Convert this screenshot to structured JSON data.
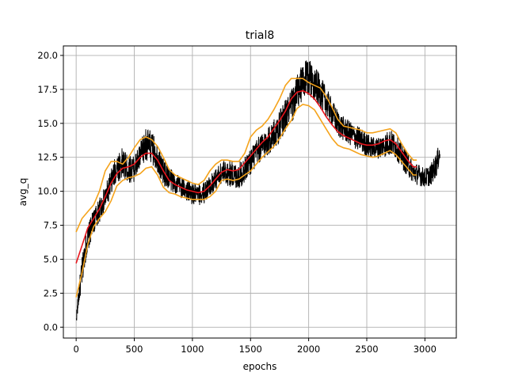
{
  "chart_data": {
    "type": "line",
    "title": "trial8",
    "xlabel": "epochs",
    "ylabel": "avg_q",
    "xlim": [
      -110,
      3270
    ],
    "ylim": [
      -0.8,
      20.7
    ],
    "xticks": [
      0,
      500,
      1000,
      1500,
      2000,
      2500,
      3000
    ],
    "xtick_labels": [
      "0",
      "500",
      "1000",
      "1500",
      "2000",
      "2500",
      "3000"
    ],
    "yticks": [
      0.0,
      2.5,
      5.0,
      7.5,
      10.0,
      12.5,
      15.0,
      17.5,
      20.0
    ],
    "ytick_labels": [
      "0.0",
      "2.5",
      "5.0",
      "7.5",
      "10.0",
      "12.5",
      "15.0",
      "17.5",
      "20.0"
    ],
    "grid": true,
    "colors": {
      "raw": "#000000",
      "mean": "#e8141b",
      "band": "#f5a31b"
    },
    "series": [
      {
        "role": "raw",
        "x": [
          0,
          25,
          50,
          75,
          100,
          150,
          200,
          250,
          300,
          350,
          400,
          450,
          500,
          550,
          600,
          650,
          700,
          750,
          800,
          850,
          900,
          950,
          1000,
          1050,
          1100,
          1150,
          1200,
          1250,
          1300,
          1350,
          1400,
          1450,
          1500,
          1550,
          1600,
          1650,
          1700,
          1750,
          1800,
          1850,
          1900,
          1950,
          2000,
          2050,
          2100,
          2150,
          2200,
          2250,
          2300,
          2350,
          2400,
          2450,
          2500,
          2550,
          2600,
          2650,
          2700,
          2750,
          2800,
          2850,
          2900,
          2950,
          3000,
          3050,
          3100,
          3130
        ],
        "y": [
          0.5,
          2.5,
          4.0,
          5.5,
          6.5,
          7.8,
          8.6,
          9.5,
          10.6,
          11.8,
          12.0,
          11.6,
          11.7,
          12.5,
          13.5,
          13.2,
          12.5,
          11.4,
          11.0,
          10.6,
          10.3,
          10.1,
          9.8,
          9.7,
          9.9,
          10.4,
          10.9,
          11.3,
          11.4,
          11.2,
          11.1,
          11.6,
          12.2,
          12.8,
          13.3,
          13.7,
          14.1,
          14.8,
          15.6,
          16.2,
          17.2,
          18.0,
          18.4,
          18.0,
          17.3,
          16.6,
          15.8,
          15.0,
          14.6,
          14.3,
          14.0,
          13.8,
          13.4,
          13.2,
          13.2,
          13.4,
          13.6,
          13.3,
          12.6,
          12.0,
          11.4,
          11.2,
          11.0,
          11.2,
          12.0,
          12.9
        ],
        "noise": [
          0.3,
          0.8,
          1.1,
          1.0,
          1.0,
          0.9,
          0.9,
          0.9,
          1.0,
          1.1,
          1.2,
          1.0,
          1.0,
          1.1,
          1.2,
          1.2,
          1.1,
          1.0,
          0.9,
          0.8,
          0.8,
          0.8,
          0.8,
          0.8,
          0.8,
          0.8,
          0.8,
          0.9,
          1.0,
          1.0,
          1.0,
          1.0,
          1.0,
          1.0,
          1.1,
          1.1,
          1.2,
          1.2,
          1.2,
          1.3,
          1.4,
          1.4,
          1.4,
          1.3,
          1.2,
          1.1,
          1.0,
          1.0,
          0.9,
          0.9,
          0.9,
          0.9,
          0.9,
          0.8,
          0.8,
          0.9,
          1.0,
          0.9,
          0.9,
          0.9,
          0.8,
          0.8,
          0.7,
          0.8,
          0.9,
          0.8
        ]
      },
      {
        "role": "mean",
        "x": [
          0,
          50,
          100,
          150,
          200,
          250,
          300,
          350,
          400,
          450,
          500,
          550,
          600,
          650,
          700,
          750,
          800,
          850,
          900,
          950,
          1000,
          1050,
          1100,
          1150,
          1200,
          1250,
          1300,
          1350,
          1400,
          1450,
          1500,
          1550,
          1600,
          1650,
          1700,
          1750,
          1800,
          1850,
          1900,
          1950,
          2000,
          2050,
          2100,
          2150,
          2200,
          2250,
          2300,
          2350,
          2400,
          2450,
          2500,
          2550,
          2600,
          2650,
          2700,
          2750,
          2800,
          2850,
          2900,
          2930
        ],
        "y": [
          4.7,
          6.0,
          7.3,
          8.0,
          8.7,
          9.6,
          10.6,
          11.3,
          11.7,
          11.8,
          12.0,
          12.5,
          12.8,
          12.8,
          12.3,
          11.5,
          10.8,
          10.5,
          10.3,
          10.1,
          10.0,
          9.9,
          10.0,
          10.4,
          10.9,
          11.4,
          11.6,
          11.5,
          11.6,
          12.1,
          12.6,
          13.1,
          13.6,
          14.0,
          14.6,
          15.2,
          15.9,
          16.8,
          17.3,
          17.4,
          17.2,
          16.8,
          16.2,
          15.5,
          14.9,
          14.4,
          14.1,
          13.9,
          13.7,
          13.5,
          13.4,
          13.4,
          13.5,
          13.7,
          13.8,
          13.5,
          12.9,
          12.3,
          11.8,
          11.8
        ]
      },
      {
        "role": "upper",
        "x": [
          0,
          50,
          100,
          150,
          200,
          250,
          300,
          350,
          400,
          450,
          500,
          550,
          600,
          650,
          700,
          750,
          800,
          850,
          900,
          950,
          1000,
          1050,
          1100,
          1150,
          1200,
          1250,
          1300,
          1350,
          1400,
          1450,
          1500,
          1550,
          1600,
          1650,
          1700,
          1750,
          1800,
          1850,
          1900,
          1950,
          2000,
          2050,
          2100,
          2150,
          2200,
          2250,
          2300,
          2350,
          2400,
          2450,
          2500,
          2550,
          2600,
          2650,
          2700,
          2750,
          2800,
          2850,
          2900,
          2930
        ],
        "y": [
          7.0,
          8.0,
          8.5,
          9.0,
          10.0,
          11.5,
          12.2,
          12.2,
          12.0,
          12.5,
          13.2,
          13.8,
          14.0,
          13.8,
          13.3,
          12.5,
          11.6,
          11.2,
          11.0,
          10.8,
          10.6,
          10.5,
          10.8,
          11.5,
          12.0,
          12.3,
          12.3,
          12.2,
          12.2,
          12.8,
          14.0,
          14.5,
          14.8,
          15.3,
          16.0,
          16.8,
          17.8,
          18.3,
          18.3,
          18.3,
          18.0,
          17.8,
          17.6,
          17.0,
          16.2,
          15.3,
          14.8,
          14.7,
          14.6,
          14.5,
          14.3,
          14.3,
          14.4,
          14.5,
          14.6,
          14.3,
          13.5,
          12.8,
          12.3,
          12.3
        ]
      },
      {
        "role": "lower",
        "x": [
          0,
          50,
          100,
          150,
          200,
          250,
          300,
          350,
          400,
          450,
          500,
          550,
          600,
          650,
          700,
          750,
          800,
          850,
          900,
          950,
          1000,
          1050,
          1100,
          1150,
          1200,
          1250,
          1300,
          1350,
          1400,
          1450,
          1500,
          1550,
          1600,
          1650,
          1700,
          1750,
          1800,
          1850,
          1900,
          1950,
          2000,
          2050,
          2100,
          2150,
          2200,
          2250,
          2300,
          2350,
          2400,
          2450,
          2500,
          2550,
          2600,
          2650,
          2700,
          2750,
          2800,
          2850,
          2900,
          2930
        ],
        "y": [
          2.2,
          4.0,
          6.1,
          7.4,
          8.0,
          8.5,
          9.3,
          10.4,
          10.8,
          11.0,
          11.1,
          11.3,
          11.7,
          11.8,
          11.2,
          10.3,
          9.9,
          9.8,
          9.6,
          9.5,
          9.4,
          9.4,
          9.4,
          9.6,
          10.0,
          10.8,
          10.9,
          10.8,
          10.9,
          11.2,
          11.5,
          12.0,
          12.5,
          12.9,
          13.3,
          13.9,
          14.6,
          15.2,
          16.1,
          16.4,
          16.3,
          16.0,
          15.3,
          14.6,
          13.9,
          13.4,
          13.2,
          13.1,
          12.9,
          12.7,
          12.6,
          12.5,
          12.6,
          12.8,
          13.0,
          12.7,
          12.2,
          11.7,
          11.2,
          11.2
        ]
      }
    ]
  }
}
